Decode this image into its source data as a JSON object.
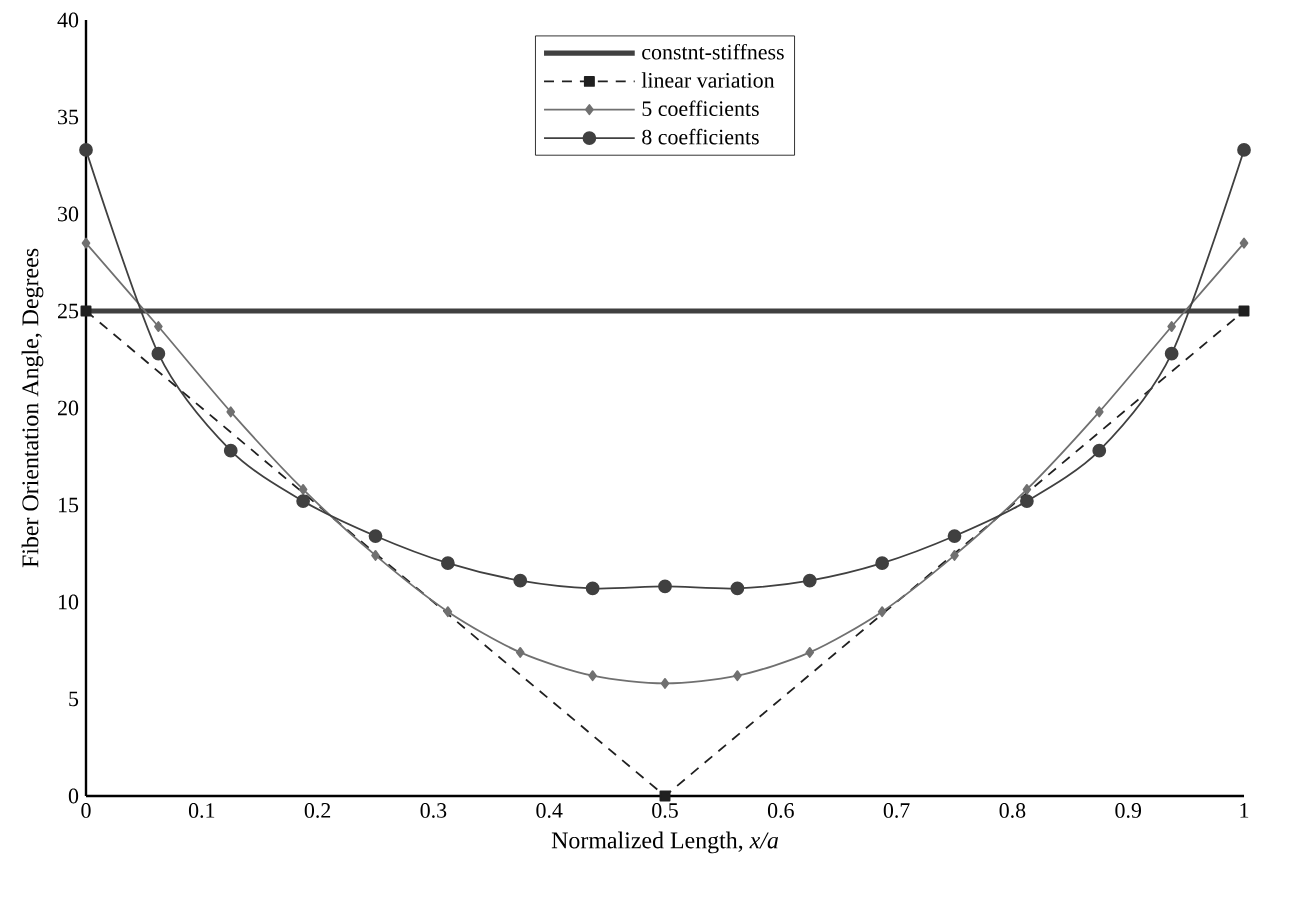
{
  "chart_data": {
    "type": "line",
    "xlabel": "Normalized Length,  *x/a*",
    "ylabel": "Fiber Orientation Angle, Degrees",
    "xlim": [
      0,
      1
    ],
    "ylim": [
      0,
      40
    ],
    "xticks": [
      0,
      0.1,
      0.2,
      0.3,
      0.4,
      0.5,
      0.6,
      0.7,
      0.8,
      0.9,
      1
    ],
    "yticks": [
      0,
      5,
      10,
      15,
      20,
      25,
      30,
      35,
      40
    ],
    "grid": false,
    "legend": "top",
    "series": [
      {
        "name": "constnt-stiffness",
        "color": "#404040",
        "marker": "none",
        "line_style": "solid",
        "x": [
          0,
          1
        ],
        "values": [
          25,
          25
        ]
      },
      {
        "name": "linear variation",
        "color": "#202020",
        "marker": "square",
        "line_style": "dashed",
        "x": [
          0,
          0.5,
          1
        ],
        "values": [
          25,
          0,
          25
        ]
      },
      {
        "name": "5 coefficients",
        "color": "#707070",
        "marker": "diamond",
        "line_style": "solid",
        "x": [
          0,
          0.0625,
          0.125,
          0.1875,
          0.25,
          0.3125,
          0.375,
          0.4375,
          0.5,
          0.5625,
          0.625,
          0.6875,
          0.75,
          0.8125,
          0.875,
          0.9375,
          1
        ],
        "values": [
          28.5,
          24.2,
          19.8,
          15.8,
          12.4,
          9.5,
          7.4,
          6.2,
          5.8,
          6.2,
          7.4,
          9.5,
          12.4,
          15.8,
          19.8,
          24.2,
          28.5
        ]
      },
      {
        "name": "8 coefficients",
        "color": "#404040",
        "marker": "circle",
        "line_style": "solid",
        "x": [
          0,
          0.0625,
          0.125,
          0.1875,
          0.25,
          0.3125,
          0.375,
          0.4375,
          0.5,
          0.5625,
          0.625,
          0.6875,
          0.75,
          0.8125,
          0.875,
          0.9375,
          1
        ],
        "values": [
          33.3,
          22.8,
          17.8,
          15.2,
          13.4,
          12.0,
          11.1,
          10.7,
          10.8,
          10.7,
          11.1,
          12.0,
          13.4,
          15.2,
          17.8,
          22.8,
          33.3
        ]
      }
    ]
  }
}
